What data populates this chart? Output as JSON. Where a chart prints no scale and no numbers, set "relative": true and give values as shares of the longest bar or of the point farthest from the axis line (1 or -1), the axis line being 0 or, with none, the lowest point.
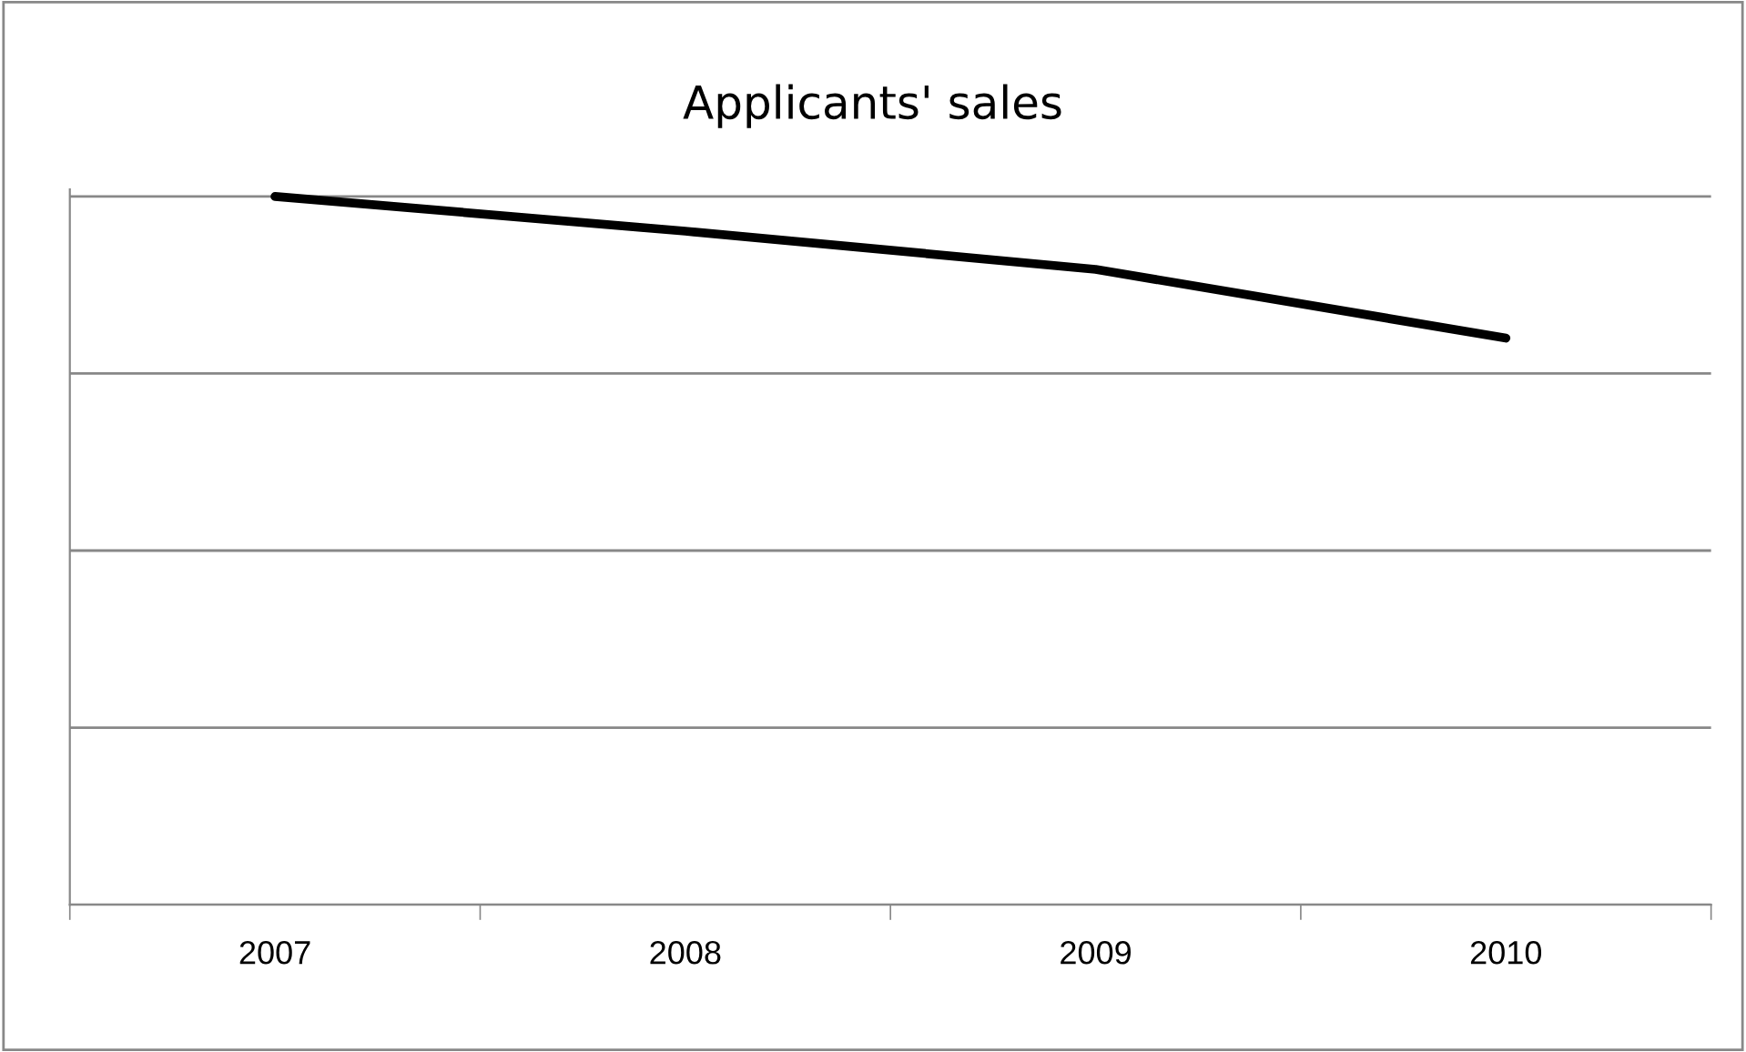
{
  "chart_data": {
    "type": "line",
    "title": "Applicants' sales",
    "categories": [
      "2007",
      "2008",
      "2009",
      "2010"
    ],
    "series": [
      {
        "color": "#000000",
        "values": [
          1,
          0.951,
          0.897,
          0.8
        ]
      }
    ],
    "relative": true,
    "grid": "y",
    "tick_labels": "x",
    "marker": "none",
    "line_style": "solid",
    "legend": false
  }
}
